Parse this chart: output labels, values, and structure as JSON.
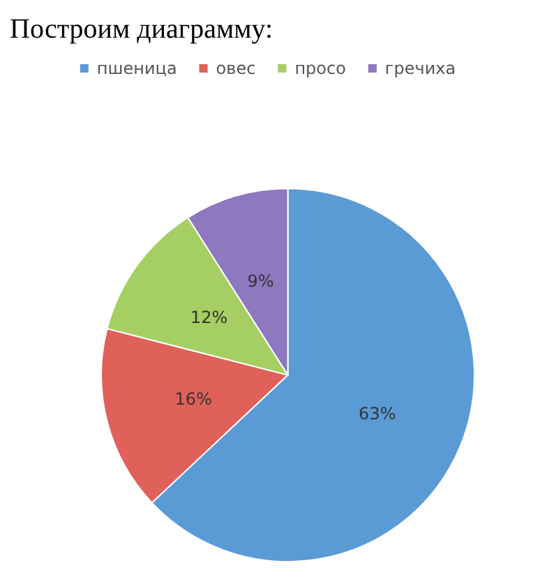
{
  "chart_data": {
    "type": "pie",
    "title": "Построим диаграмму:",
    "categories": [
      "пшеница",
      "овес",
      "просо",
      "гречиха"
    ],
    "values": [
      63,
      16,
      12,
      9
    ],
    "colors": [
      "#5b9bd5",
      "#e0605a",
      "#a5cf62",
      "#8e78c0"
    ],
    "value_labels": [
      "63%",
      "16%",
      "12%",
      "9%"
    ],
    "legend": "top"
  }
}
